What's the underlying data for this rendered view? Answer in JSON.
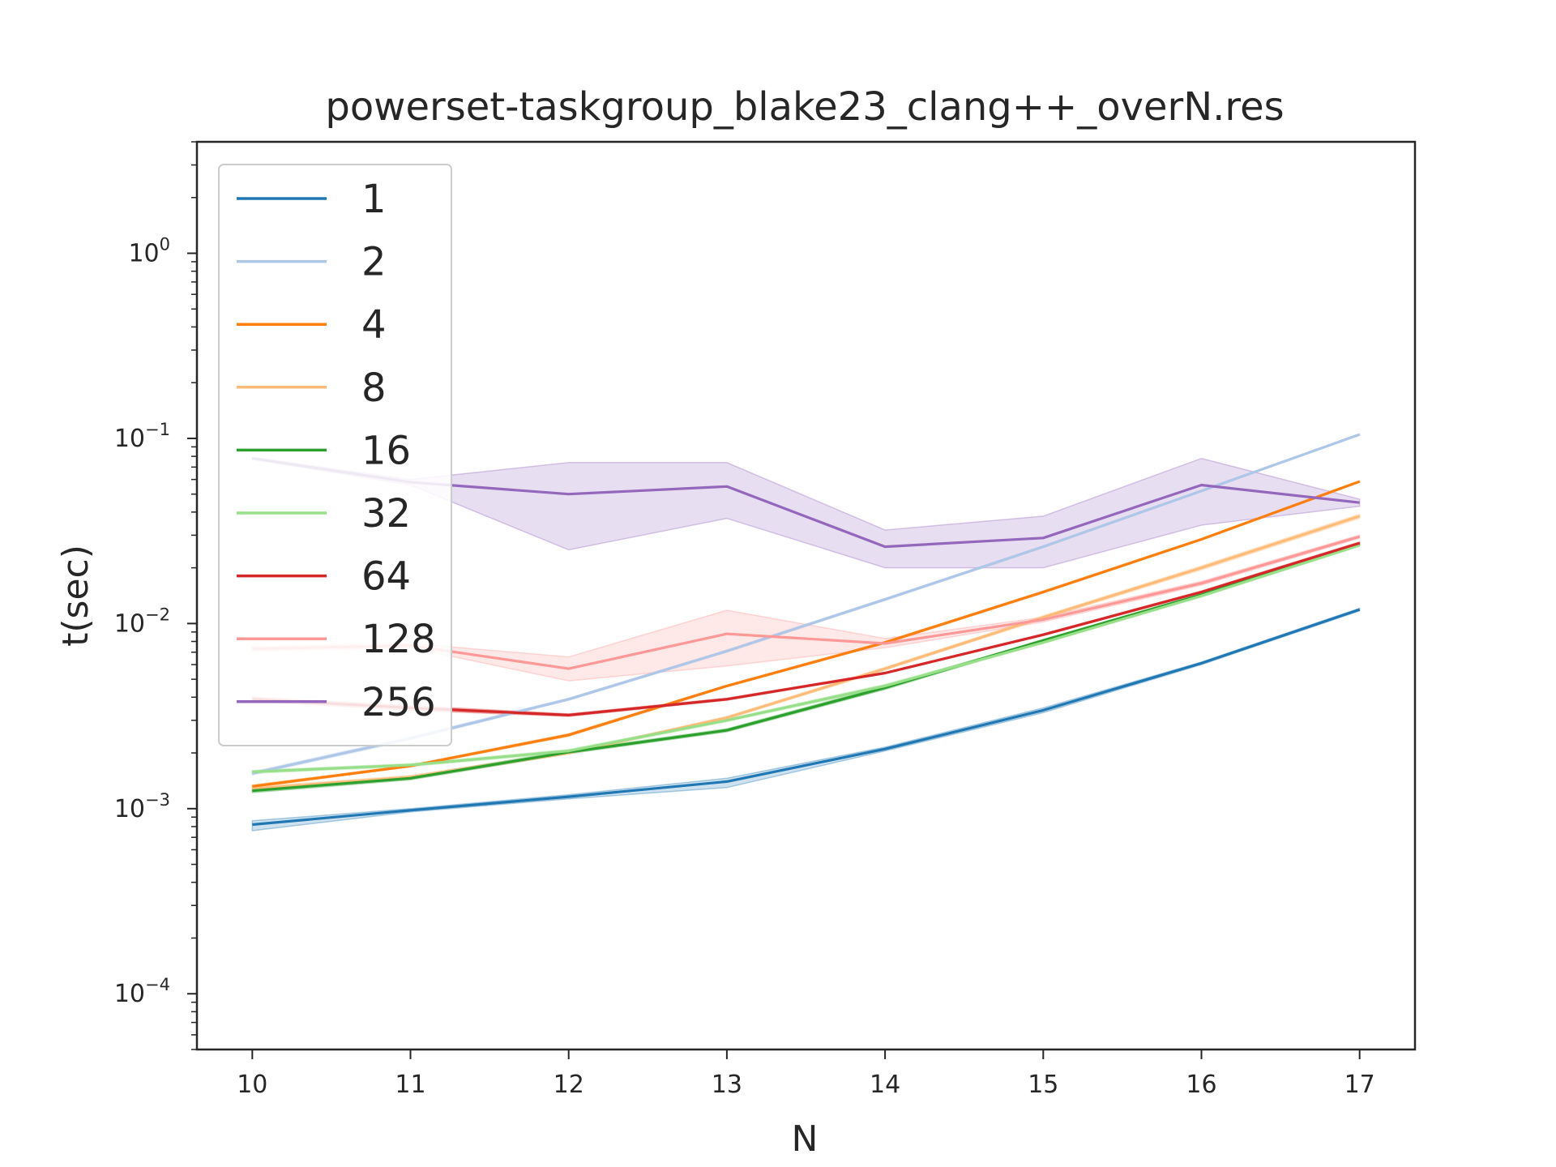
{
  "chart_data": {
    "type": "line",
    "title": "powerset-taskgroup_blake23_clang++_overN.res",
    "xlabel": "N",
    "ylabel": "t(sec)",
    "yscale": "log",
    "xlim": [
      9.65,
      17.35
    ],
    "ylim": [
      5e-05,
      4.0
    ],
    "x": [
      10,
      11,
      12,
      13,
      14,
      15,
      16,
      17
    ],
    "xticks": [
      "10",
      "11",
      "12",
      "13",
      "14",
      "15",
      "16",
      "17"
    ],
    "yticks": [
      {
        "base": "10",
        "exp": "−4",
        "value": 0.0001
      },
      {
        "base": "10",
        "exp": "−3",
        "value": 0.001
      },
      {
        "base": "10",
        "exp": "−2",
        "value": 0.01
      },
      {
        "base": "10",
        "exp": "−1",
        "value": 0.1
      },
      {
        "base": "10",
        "exp": "0",
        "value": 1
      }
    ],
    "grid": false,
    "legend_position": "upper-left",
    "series": [
      {
        "name": "1",
        "color": "#1f77b4",
        "values": [
          0.00082,
          0.00098,
          0.00116,
          0.0014,
          0.0021,
          0.0034,
          0.0061,
          0.0119
        ],
        "lower": [
          0.00076,
          0.00096,
          0.00113,
          0.0013,
          0.00205,
          0.0033,
          0.006,
          0.0117
        ],
        "upper": [
          0.00086,
          0.001,
          0.00119,
          0.00146,
          0.00215,
          0.0035,
          0.0062,
          0.0121
        ]
      },
      {
        "name": "2",
        "color": "#aec7e8",
        "values": [
          0.00155,
          0.0024,
          0.0039,
          0.0071,
          0.0135,
          0.026,
          0.052,
          0.105
        ],
        "lower": [
          0.00152,
          0.00235,
          0.00385,
          0.007,
          0.0133,
          0.0257,
          0.0515,
          0.104
        ],
        "upper": [
          0.00158,
          0.00245,
          0.00395,
          0.0072,
          0.0137,
          0.0263,
          0.0525,
          0.106
        ]
      },
      {
        "name": "4",
        "color": "#ff7f0e",
        "values": [
          0.00132,
          0.0017,
          0.0025,
          0.0046,
          0.0079,
          0.0148,
          0.0285,
          0.0585
        ],
        "lower": [
          0.0013,
          0.00168,
          0.00246,
          0.00455,
          0.0078,
          0.0146,
          0.0282,
          0.058
        ],
        "upper": [
          0.00134,
          0.00172,
          0.00254,
          0.00465,
          0.008,
          0.015,
          0.0288,
          0.059
        ]
      },
      {
        "name": "8",
        "color": "#ffbb78",
        "values": [
          0.00128,
          0.00148,
          0.002,
          0.0031,
          0.0057,
          0.0108,
          0.02,
          0.038
        ],
        "lower": [
          0.00125,
          0.00145,
          0.00197,
          0.00305,
          0.0056,
          0.0106,
          0.0195,
          0.037
        ],
        "upper": [
          0.00131,
          0.00151,
          0.00203,
          0.00315,
          0.0058,
          0.011,
          0.0205,
          0.039
        ]
      },
      {
        "name": "16",
        "color": "#2ca02c",
        "values": [
          0.00125,
          0.00146,
          0.00202,
          0.00265,
          0.0045,
          0.0081,
          0.0143,
          0.0268
        ],
        "lower": [
          0.00122,
          0.00143,
          0.00198,
          0.0026,
          0.0044,
          0.008,
          0.0141,
          0.0264
        ],
        "upper": [
          0.00128,
          0.00149,
          0.00206,
          0.0027,
          0.0046,
          0.0082,
          0.0145,
          0.0272
        ]
      },
      {
        "name": "32",
        "color": "#98df8a",
        "values": [
          0.00158,
          0.00172,
          0.00205,
          0.003,
          0.0046,
          0.0079,
          0.0141,
          0.0265
        ],
        "lower": [
          0.00155,
          0.00169,
          0.00201,
          0.00295,
          0.0045,
          0.0078,
          0.0139,
          0.0261
        ],
        "upper": [
          0.00161,
          0.00175,
          0.00209,
          0.00305,
          0.0047,
          0.008,
          0.0143,
          0.0269
        ]
      },
      {
        "name": "64",
        "color": "#d62728",
        "values": [
          0.0039,
          0.0035,
          0.0032,
          0.0039,
          0.0054,
          0.0087,
          0.0148,
          0.0272
        ],
        "lower": [
          0.0038,
          0.0034,
          0.00315,
          0.00385,
          0.00535,
          0.0086,
          0.0146,
          0.0268
        ],
        "upper": [
          0.004,
          0.0036,
          0.00325,
          0.00395,
          0.00545,
          0.0088,
          0.015,
          0.0276
        ]
      },
      {
        "name": "128",
        "color": "#ff9896",
        "values": [
          0.0073,
          0.0076,
          0.0057,
          0.0088,
          0.0078,
          0.0105,
          0.0165,
          0.0295
        ],
        "lower": [
          0.0071,
          0.0074,
          0.0049,
          0.0059,
          0.0074,
          0.0102,
          0.0161,
          0.0289
        ],
        "upper": [
          0.0075,
          0.0078,
          0.0066,
          0.0118,
          0.0083,
          0.0108,
          0.0169,
          0.0301
        ]
      },
      {
        "name": "256",
        "color": "#9467bd",
        "values": [
          0.078,
          0.058,
          0.05,
          0.055,
          0.026,
          0.029,
          0.056,
          0.045
        ],
        "lower": [
          0.077,
          0.056,
          0.025,
          0.037,
          0.02,
          0.02,
          0.034,
          0.043
        ],
        "upper": [
          0.079,
          0.06,
          0.074,
          0.074,
          0.032,
          0.038,
          0.078,
          0.047
        ]
      }
    ]
  }
}
